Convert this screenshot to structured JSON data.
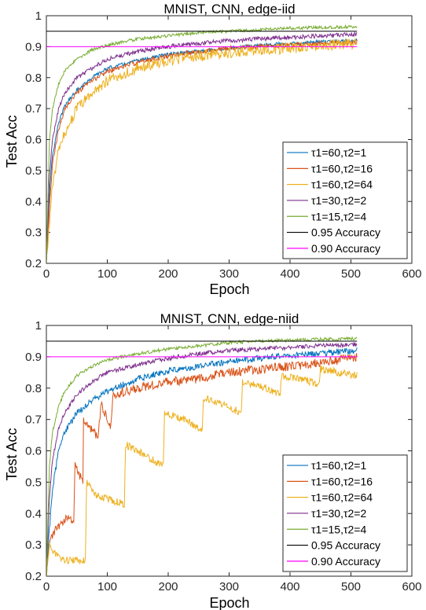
{
  "chart_data": [
    {
      "type": "line",
      "title": "MNIST, CNN, edge-iid",
      "xlabel": "Epoch",
      "ylabel": "Test Acc",
      "xlim": [
        0,
        600
      ],
      "ylim": [
        0.2,
        1.0
      ],
      "xticks": [
        "0",
        "100",
        "200",
        "300",
        "400",
        "500",
        "600"
      ],
      "yticks": [
        "0.2",
        "0.3",
        "0.4",
        "0.5",
        "0.6",
        "0.7",
        "0.8",
        "0.9",
        "1"
      ],
      "grid": false,
      "legend_position": "bottom-right",
      "series": [
        {
          "name": "τ1=60,τ2=1",
          "color": "#0072BD",
          "x": [
            0,
            5,
            10,
            20,
            30,
            50,
            75,
            100,
            150,
            200,
            250,
            300,
            350,
            400,
            450,
            510
          ],
          "values": [
            0.2,
            0.42,
            0.55,
            0.65,
            0.71,
            0.76,
            0.8,
            0.83,
            0.855,
            0.875,
            0.885,
            0.895,
            0.905,
            0.91,
            0.915,
            0.92
          ],
          "noise": 0.006
        },
        {
          "name": "τ1=60,τ2=16",
          "color": "#D95319",
          "x": [
            0,
            5,
            10,
            20,
            30,
            50,
            75,
            100,
            150,
            200,
            250,
            300,
            350,
            400,
            450,
            510
          ],
          "values": [
            0.2,
            0.38,
            0.52,
            0.63,
            0.7,
            0.75,
            0.79,
            0.82,
            0.85,
            0.87,
            0.885,
            0.895,
            0.9,
            0.905,
            0.91,
            0.915
          ],
          "noise": 0.008
        },
        {
          "name": "τ1=60,τ2=64",
          "color": "#EDB120",
          "x": [
            0,
            5,
            10,
            20,
            30,
            50,
            75,
            100,
            150,
            200,
            250,
            300,
            350,
            400,
            450,
            510
          ],
          "values": [
            0.2,
            0.33,
            0.45,
            0.56,
            0.62,
            0.7,
            0.75,
            0.79,
            0.83,
            0.855,
            0.87,
            0.88,
            0.89,
            0.895,
            0.905,
            0.91
          ],
          "noise": 0.018
        },
        {
          "name": "τ1=30,τ2=2",
          "color": "#7E2F8E",
          "x": [
            0,
            5,
            10,
            20,
            30,
            50,
            75,
            100,
            150,
            200,
            250,
            300,
            350,
            400,
            450,
            510
          ],
          "values": [
            0.2,
            0.48,
            0.6,
            0.7,
            0.75,
            0.8,
            0.83,
            0.86,
            0.885,
            0.9,
            0.91,
            0.92,
            0.925,
            0.93,
            0.935,
            0.94
          ],
          "noise": 0.007
        },
        {
          "name": "τ1=15,τ2=4",
          "color": "#77AC30",
          "x": [
            0,
            5,
            10,
            20,
            30,
            50,
            75,
            100,
            150,
            200,
            250,
            300,
            350,
            400,
            450,
            510
          ],
          "values": [
            0.2,
            0.6,
            0.7,
            0.78,
            0.82,
            0.86,
            0.89,
            0.905,
            0.925,
            0.935,
            0.945,
            0.95,
            0.955,
            0.96,
            0.962,
            0.965
          ],
          "noise": 0.005
        },
        {
          "name": "0.95 Accuracy",
          "color": "#000000",
          "x": [
            0,
            510
          ],
          "values": [
            0.95,
            0.95
          ],
          "noise": 0
        },
        {
          "name": "0.90 Accuracy",
          "color": "#FF00FF",
          "x": [
            0,
            510
          ],
          "values": [
            0.9,
            0.9
          ],
          "noise": 0
        }
      ]
    },
    {
      "type": "line",
      "title": "MNIST, CNN, edge-niid",
      "xlabel": "Epoch",
      "ylabel": "Test Acc",
      "xlim": [
        0,
        600
      ],
      "ylim": [
        0.2,
        1.0
      ],
      "xticks": [
        "0",
        "100",
        "200",
        "300",
        "400",
        "500",
        "600"
      ],
      "yticks": [
        "0.2",
        "0.3",
        "0.4",
        "0.5",
        "0.6",
        "0.7",
        "0.8",
        "0.9",
        "1"
      ],
      "grid": false,
      "legend_position": "bottom-right",
      "series": [
        {
          "name": "τ1=60,τ2=1",
          "color": "#0072BD",
          "x": [
            0,
            5,
            10,
            20,
            30,
            50,
            75,
            100,
            150,
            200,
            250,
            300,
            350,
            400,
            450,
            510
          ],
          "values": [
            0.2,
            0.35,
            0.48,
            0.6,
            0.66,
            0.72,
            0.76,
            0.79,
            0.83,
            0.855,
            0.87,
            0.885,
            0.895,
            0.905,
            0.91,
            0.92
          ],
          "noise": 0.01
        },
        {
          "name": "τ1=60,τ2=16",
          "color": "#D95319",
          "x": [
            0,
            5,
            10,
            20,
            30,
            45,
            47,
            60,
            61,
            85,
            90,
            105,
            110,
            150,
            200,
            250,
            300,
            350,
            400,
            450,
            510
          ],
          "values": [
            0.2,
            0.3,
            0.33,
            0.36,
            0.38,
            0.38,
            0.55,
            0.5,
            0.7,
            0.64,
            0.75,
            0.68,
            0.78,
            0.8,
            0.82,
            0.83,
            0.85,
            0.86,
            0.87,
            0.88,
            0.9
          ],
          "noise": 0.015
        },
        {
          "name": "τ1=60,τ2=64",
          "color": "#EDB120",
          "x": [
            0,
            5,
            15,
            30,
            64,
            66,
            80,
            128,
            130,
            150,
            192,
            194,
            230,
            256,
            258,
            300,
            320,
            322,
            360,
            384,
            386,
            420,
            448,
            450,
            480,
            510
          ],
          "values": [
            0.2,
            0.3,
            0.27,
            0.25,
            0.25,
            0.5,
            0.46,
            0.43,
            0.62,
            0.6,
            0.55,
            0.72,
            0.7,
            0.66,
            0.77,
            0.74,
            0.72,
            0.82,
            0.8,
            0.78,
            0.84,
            0.83,
            0.81,
            0.86,
            0.85,
            0.84
          ],
          "noise": 0.012
        },
        {
          "name": "τ1=30,τ2=2",
          "color": "#7E2F8E",
          "x": [
            0,
            5,
            10,
            20,
            30,
            50,
            75,
            100,
            150,
            200,
            250,
            300,
            350,
            400,
            450,
            510
          ],
          "values": [
            0.2,
            0.45,
            0.57,
            0.67,
            0.72,
            0.78,
            0.82,
            0.85,
            0.875,
            0.895,
            0.91,
            0.92,
            0.925,
            0.93,
            0.935,
            0.94
          ],
          "noise": 0.007
        },
        {
          "name": "τ1=15,τ2=4",
          "color": "#77AC30",
          "x": [
            0,
            5,
            10,
            20,
            30,
            50,
            75,
            100,
            150,
            200,
            250,
            300,
            350,
            400,
            450,
            510
          ],
          "values": [
            0.2,
            0.55,
            0.66,
            0.74,
            0.79,
            0.84,
            0.87,
            0.89,
            0.91,
            0.925,
            0.935,
            0.945,
            0.95,
            0.953,
            0.956,
            0.958
          ],
          "noise": 0.005
        },
        {
          "name": "0.95 Accuracy",
          "color": "#000000",
          "x": [
            0,
            510
          ],
          "values": [
            0.95,
            0.95
          ],
          "noise": 0
        },
        {
          "name": "0.90 Accuracy",
          "color": "#FF00FF",
          "x": [
            0,
            510
          ],
          "values": [
            0.9,
            0.9
          ],
          "noise": 0
        }
      ]
    }
  ]
}
